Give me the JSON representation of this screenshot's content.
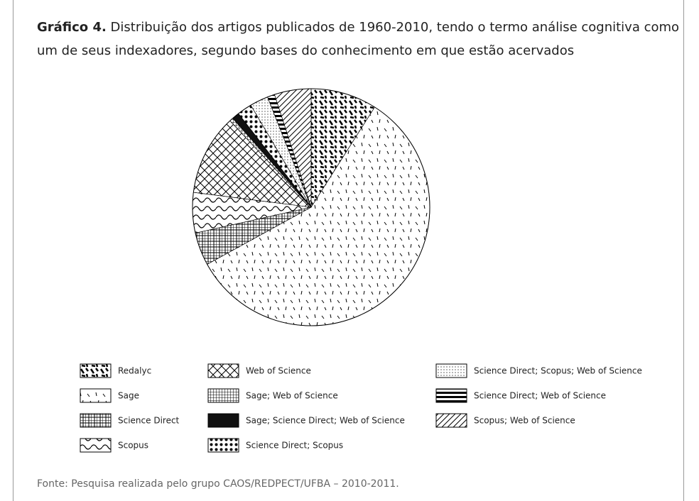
{
  "chart_data": {
    "type": "pie",
    "title_label": "Gráfico 4.",
    "title": "Distribuição dos artigos publicados de 1960-2010, tendo o termo análise cognitiva como um de seus indexadores, segundo bases do conhecimento em que estão acervados",
    "categories": [
      "Redalyc",
      "Sage",
      "Science Direct",
      "Scopus",
      "Web of Science",
      "Sage; Web of Science",
      "Sage; Science Direct; Web of Science",
      "Science Direct; Scopus",
      "Science Direct; Scopus; Web of Science",
      "Science Direct; Web of Science",
      "Scopus; Web of Science"
    ],
    "values": [
      9,
      58,
      4.5,
      5.5,
      11,
      0.5,
      1,
      2,
      2.5,
      1,
      5
    ],
    "source": "Fonte: Pesquisa realizada pelo grupo CAOS/REDPECT/UFBA – 2010-2011."
  }
}
